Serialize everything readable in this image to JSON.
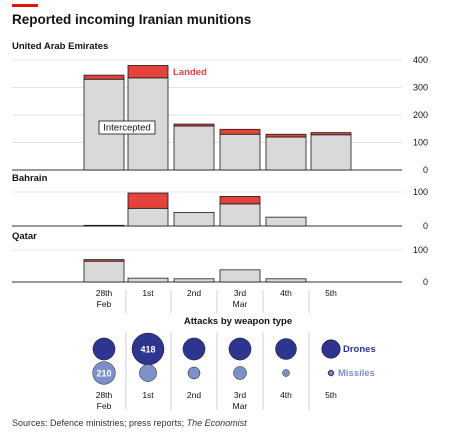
{
  "title": "Reported incoming Iranian munitions",
  "source": {
    "text": "Sources: Defence ministries; press reports;",
    "publication": "The Economist"
  },
  "colors": {
    "landed": "#e3433b",
    "intercepted": "#d9d9d9",
    "bar_outline": "#1a1a1a",
    "drones": "#2d3590",
    "missiles": "#7d90c7",
    "grid": "#c9c9c9"
  },
  "chart_data": [
    {
      "type": "bar",
      "stacked": true,
      "panel": "United Arab Emirates",
      "categories": [
        "28th Feb",
        "1st",
        "2nd",
        "3rd Mar",
        "4th",
        "5th"
      ],
      "series": [
        {
          "name": "Intercepted",
          "values": [
            330,
            335,
            160,
            130,
            120,
            128
          ]
        },
        {
          "name": "Landed",
          "values": [
            15,
            45,
            7,
            18,
            10,
            8
          ]
        }
      ],
      "ylim": [
        0,
        400
      ],
      "yticks": [
        0,
        100,
        200,
        300,
        400
      ],
      "annotations": [
        "Intercepted",
        "Landed"
      ]
    },
    {
      "type": "bar",
      "stacked": true,
      "panel": "Bahrain",
      "categories": [
        "28th Feb",
        "1st",
        "2nd",
        "3rd Mar",
        "4th",
        "5th"
      ],
      "series": [
        {
          "name": "Intercepted",
          "values": [
            2,
            52,
            40,
            65,
            26,
            0
          ]
        },
        {
          "name": "Landed",
          "values": [
            0,
            45,
            0,
            22,
            0,
            0
          ]
        }
      ],
      "ylim": [
        0,
        100
      ],
      "yticks": [
        0,
        100
      ]
    },
    {
      "type": "bar",
      "stacked": true,
      "panel": "Qatar",
      "categories": [
        "28th Feb",
        "1st",
        "2nd",
        "3rd Mar",
        "4th",
        "5th"
      ],
      "series": [
        {
          "name": "Intercepted",
          "values": [
            65,
            12,
            10,
            38,
            10,
            0
          ]
        },
        {
          "name": "Landed",
          "values": [
            5,
            0,
            0,
            0,
            0,
            0
          ]
        }
      ],
      "ylim": [
        0,
        100
      ],
      "yticks": [
        0,
        100
      ]
    },
    {
      "type": "scatter",
      "title": "Attacks by weapon type",
      "categories": [
        "28th Feb",
        "1st",
        "2nd",
        "3rd Mar",
        "4th",
        "5th"
      ],
      "series": [
        {
          "name": "Drones",
          "values": [
            200,
            418,
            200,
            200,
            180,
            140
          ]
        },
        {
          "name": "Missiles",
          "values": [
            210,
            120,
            60,
            70,
            20,
            5
          ]
        }
      ],
      "labels": [
        {
          "series": "Drones",
          "index": 1,
          "text": "418"
        },
        {
          "series": "Missiles",
          "index": 0,
          "text": "210"
        }
      ]
    }
  ]
}
